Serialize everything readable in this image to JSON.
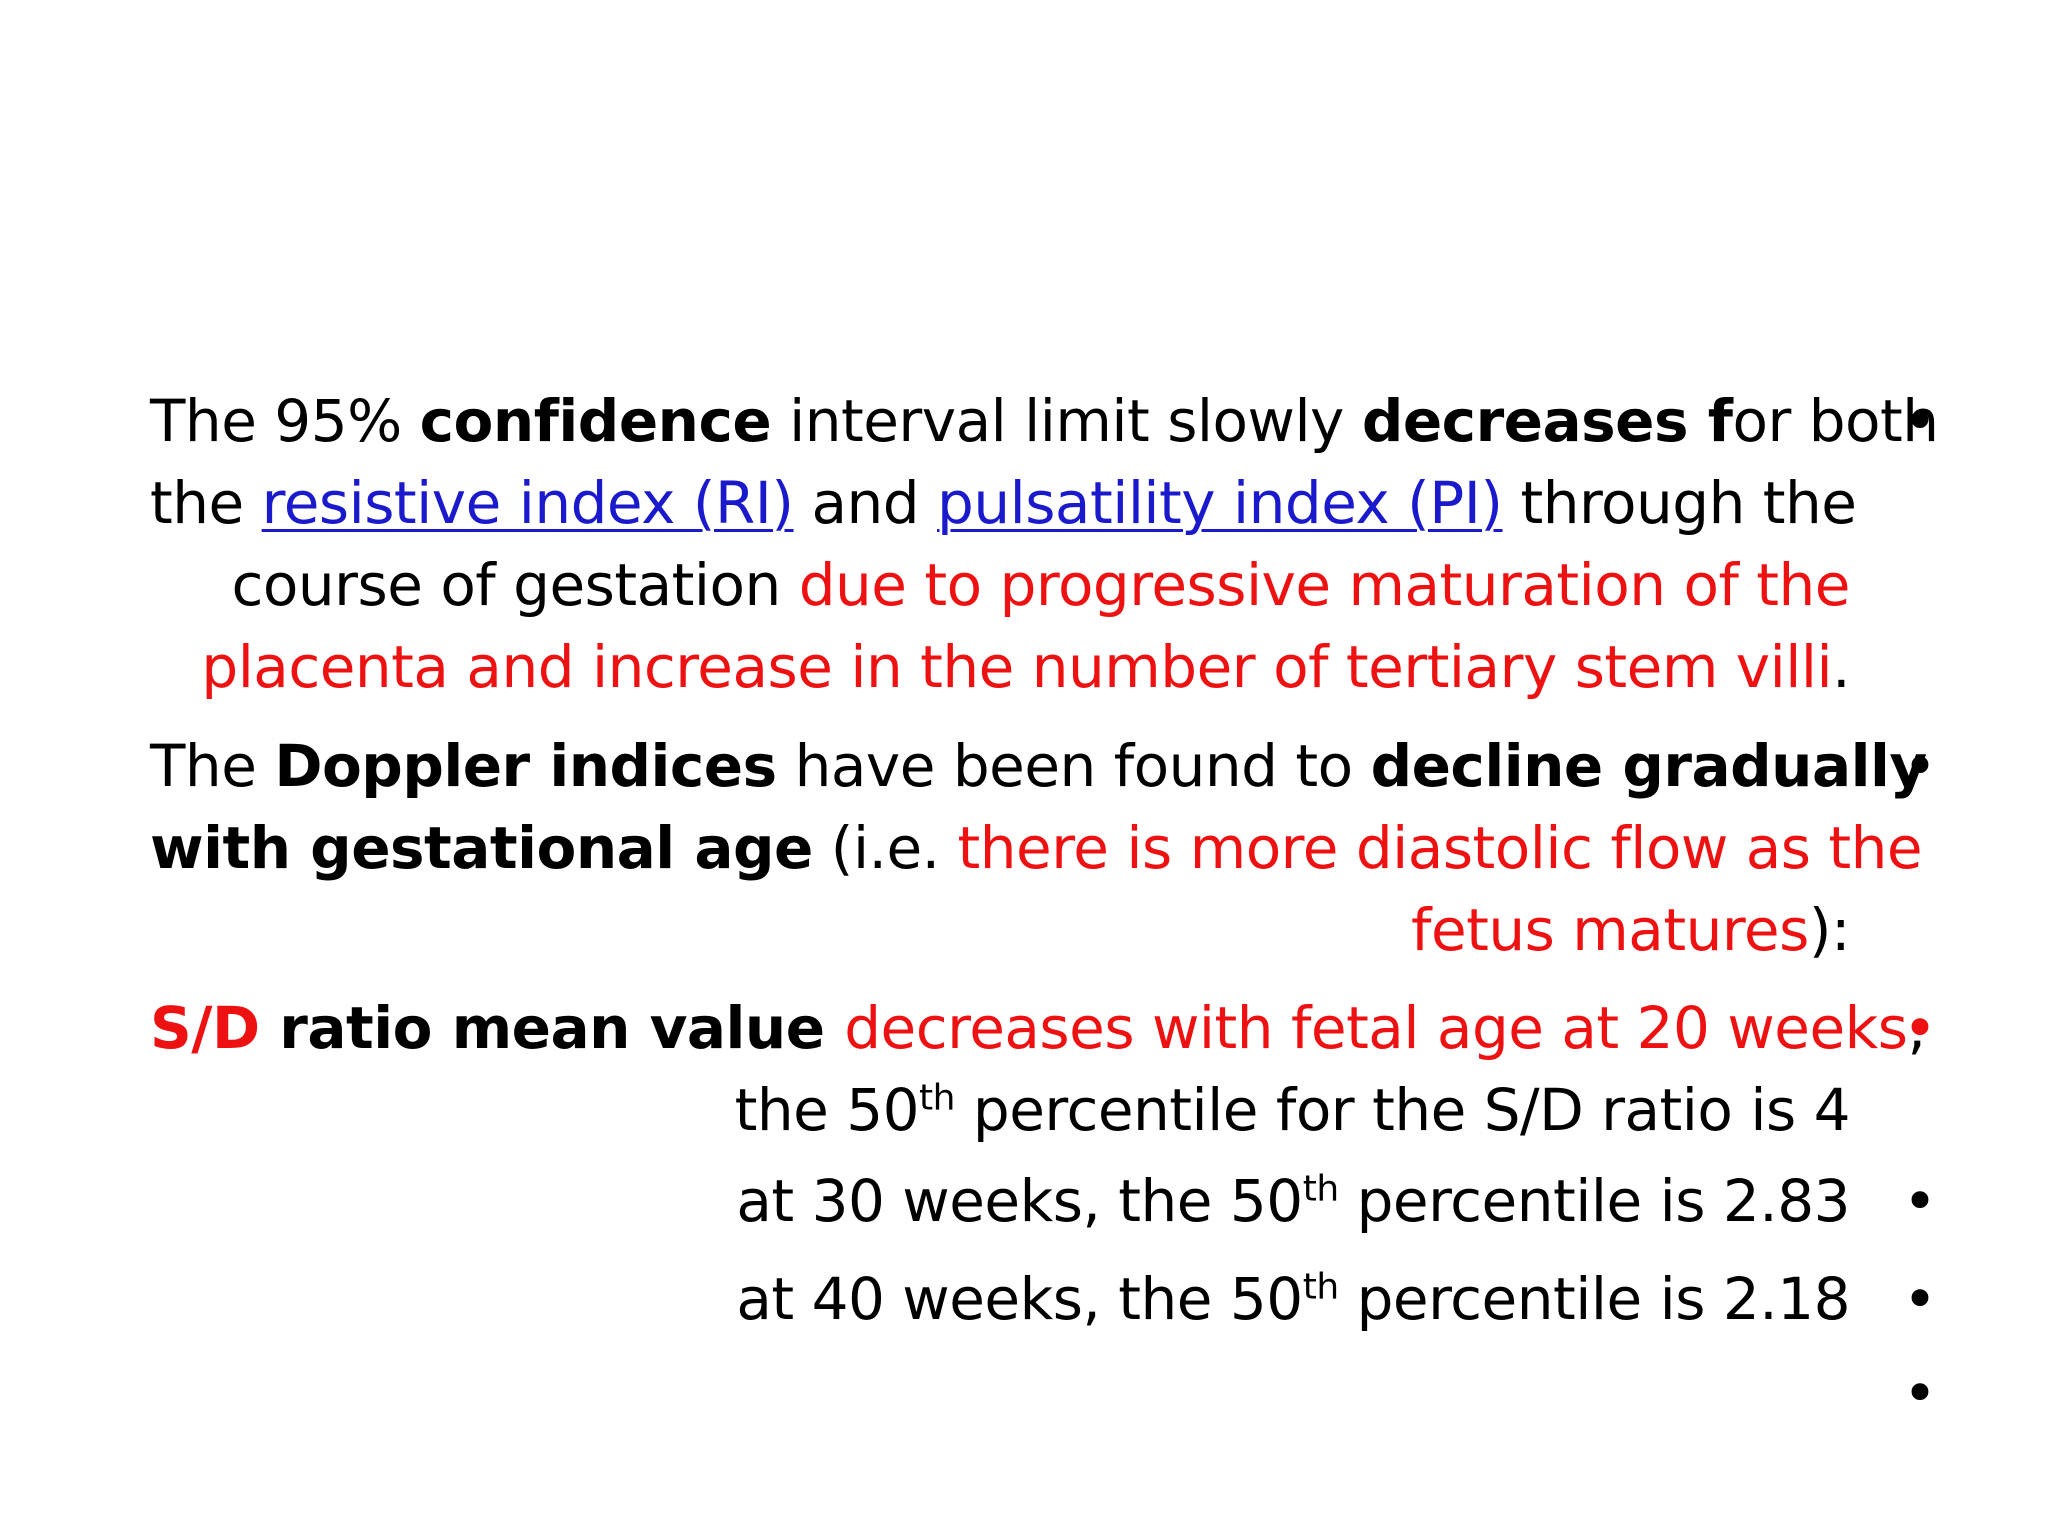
{
  "colors": {
    "text": "#000000",
    "highlight_red": "#ee1111",
    "link_blue": "#1a1acc",
    "background": "#ffffff"
  },
  "bullet_glyph": "•",
  "paragraph1": {
    "p1": "The 95% ",
    "b1": "confidence",
    "p2": " interval limit slowly ",
    "b2": "decreases f",
    "p3": "or both",
    "p4": "the ",
    "link1": "resistive index (RI)",
    "p5": " and ",
    "link2": "pulsatility index (PI)",
    "p6": " through the",
    "p7": "course of gestation ",
    "r1": "due to progressive maturation of the",
    "r2": "placenta and increase in the number of tertiary stem villi",
    "p8": "."
  },
  "paragraph2": {
    "p1": "The ",
    "b1": "Doppler indices",
    "p2": " have been found to ",
    "b2": "decline gradually",
    "b3": "with gestational age",
    "p3": " (i.e. ",
    "r1": "there is more diastolic flow as the",
    "r2": "fetus matures",
    "p4": "):"
  },
  "paragraph3": {
    "rb1": "S/D",
    "b1": " ratio mean value ",
    "r1": "decreases with fetal age  at 20 weeks",
    "p1": ",",
    "p2": "the 50",
    "sup": "th",
    "p3": " percentile for the S/D ratio is 4"
  },
  "paragraph4": {
    "p1": "at 30 weeks, the 50",
    "sup": "th",
    "p2": " percentile is 2.83"
  },
  "paragraph5": {
    "p1": "at 40 weeks, the 50",
    "sup": "th",
    "p2": " percentile is 2.18"
  }
}
